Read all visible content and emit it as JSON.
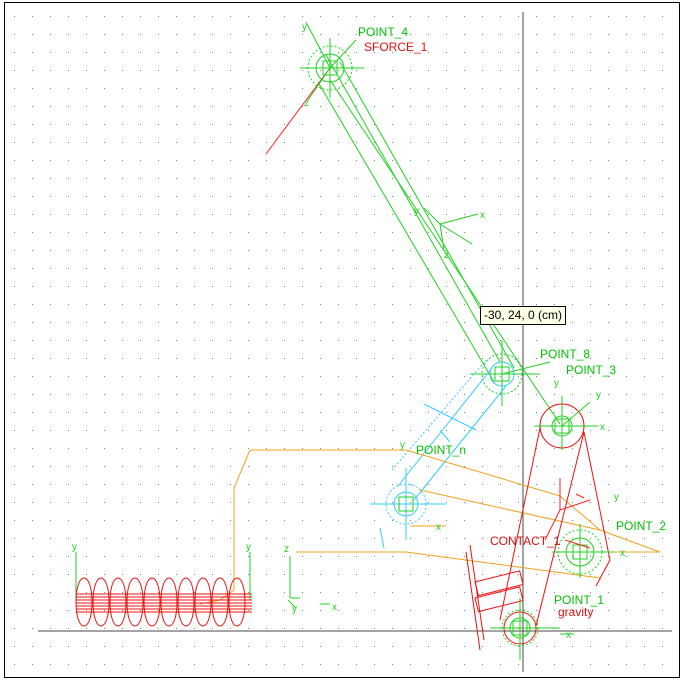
{
  "colors": {
    "grid_dot": "#7f7f7f",
    "axis_line": "#4a4a4a",
    "link_green": "#1fd21f",
    "link_cyan": "#33ccff",
    "link_orange": "#f0a020",
    "spring_red": "#ee1010",
    "marker_red": "#ff2020",
    "label_green": "#00c000",
    "label_red": "#e01010"
  },
  "labels": {
    "point_4": "POINT_4",
    "sforce_1": "SFORCE_1",
    "point_8": "POINT_8",
    "point_3": "POINT_3",
    "point_n": "POINT_n",
    "point_2": "POINT_2",
    "contact_1": "CONTACT_1",
    "point_1": "POINT_1",
    "gravity": "gravity"
  },
  "tooltip": {
    "coordinate_readout": "-30, 24, 0 (cm)"
  },
  "axis_letters": {
    "x": "x",
    "y": "y",
    "z": "z"
  }
}
